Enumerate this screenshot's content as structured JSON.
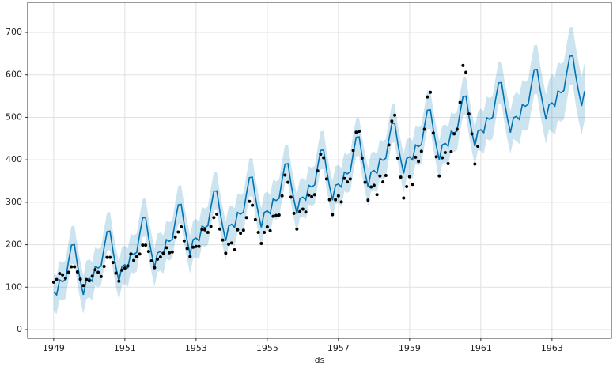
{
  "chart_data": {
    "type": "forecast",
    "xlabel": "ds",
    "xlim": [
      1948.27,
      1964.67
    ],
    "ylim": [
      -20.5,
      770.8
    ],
    "xticks": [
      1949,
      1951,
      1953,
      1955,
      1957,
      1959,
      1961,
      1963
    ],
    "yticks": [
      0,
      100,
      200,
      300,
      400,
      500,
      600,
      700
    ],
    "grid": true,
    "point_color": "#000000",
    "line_color": "#0072B2",
    "band_color": "#0072B2",
    "x": [
      1949,
      1949.083,
      1949.167,
      1949.25,
      1949.333,
      1949.417,
      1949.5,
      1949.583,
      1949.667,
      1949.75,
      1949.833,
      1949.917,
      1950,
      1950.083,
      1950.167,
      1950.25,
      1950.333,
      1950.417,
      1950.5,
      1950.583,
      1950.667,
      1950.75,
      1950.833,
      1950.917,
      1951,
      1951.083,
      1951.167,
      1951.25,
      1951.333,
      1951.417,
      1951.5,
      1951.583,
      1951.667,
      1951.75,
      1951.833,
      1951.917,
      1952,
      1952.083,
      1952.167,
      1952.25,
      1952.333,
      1952.417,
      1952.5,
      1952.583,
      1952.667,
      1952.75,
      1952.833,
      1952.917,
      1953,
      1953.083,
      1953.167,
      1953.25,
      1953.333,
      1953.417,
      1953.5,
      1953.583,
      1953.667,
      1953.75,
      1953.833,
      1953.917,
      1954,
      1954.083,
      1954.167,
      1954.25,
      1954.333,
      1954.417,
      1954.5,
      1954.583,
      1954.667,
      1954.75,
      1954.833,
      1954.917,
      1955,
      1955.083,
      1955.167,
      1955.25,
      1955.333,
      1955.417,
      1955.5,
      1955.583,
      1955.667,
      1955.75,
      1955.833,
      1955.917,
      1956,
      1956.083,
      1956.167,
      1956.25,
      1956.333,
      1956.417,
      1956.5,
      1956.583,
      1956.667,
      1956.75,
      1956.833,
      1956.917,
      1957,
      1957.083,
      1957.167,
      1957.25,
      1957.333,
      1957.417,
      1957.5,
      1957.583,
      1957.667,
      1957.75,
      1957.833,
      1957.917,
      1958,
      1958.083,
      1958.167,
      1958.25,
      1958.333,
      1958.417,
      1958.5,
      1958.583,
      1958.667,
      1958.75,
      1958.833,
      1958.917,
      1959,
      1959.083,
      1959.167,
      1959.25,
      1959.333,
      1959.417,
      1959.5,
      1959.583,
      1959.667,
      1959.75,
      1959.833,
      1959.917,
      1960,
      1960.083,
      1960.167,
      1960.25,
      1960.333,
      1960.417,
      1960.5,
      1960.583,
      1960.667,
      1960.75,
      1960.833,
      1960.917,
      1961,
      1961.083,
      1961.167,
      1961.25,
      1961.333,
      1961.417,
      1961.5,
      1961.583,
      1961.667,
      1961.75,
      1961.833,
      1961.917,
      1962,
      1962.083,
      1962.167,
      1962.25,
      1962.333,
      1962.417,
      1962.5,
      1962.583,
      1962.667,
      1962.75,
      1962.833,
      1962.917,
      1963,
      1963.083,
      1963.167,
      1963.25,
      1963.333,
      1963.417,
      1963.5,
      1963.583,
      1963.667,
      1963.75,
      1963.833,
      1963.917
    ],
    "observed": [
      112,
      118,
      132,
      129,
      121,
      135,
      148,
      148,
      136,
      119,
      104,
      118,
      115,
      126,
      141,
      135,
      125,
      149,
      170,
      170,
      158,
      133,
      114,
      140,
      145,
      150,
      178,
      163,
      172,
      178,
      199,
      199,
      184,
      162,
      146,
      166,
      171,
      180,
      193,
      181,
      183,
      218,
      230,
      242,
      209,
      191,
      172,
      194,
      196,
      196,
      236,
      235,
      229,
      243,
      264,
      272,
      237,
      211,
      180,
      201,
      204,
      188,
      235,
      227,
      234,
      264,
      302,
      293,
      259,
      229,
      203,
      229,
      242,
      233,
      267,
      269,
      270,
      315,
      364,
      347,
      312,
      274,
      237,
      278,
      284,
      277,
      317,
      313,
      318,
      374,
      413,
      405,
      355,
      306,
      271,
      306,
      315,
      301,
      356,
      348,
      355,
      422,
      465,
      467,
      404,
      347,
      305,
      336,
      340,
      318,
      362,
      348,
      363,
      435,
      491,
      505,
      404,
      359,
      310,
      337,
      360,
      342,
      406,
      396,
      420,
      472,
      548,
      559,
      463,
      407,
      362,
      405,
      417,
      391,
      419,
      461,
      472,
      535,
      622,
      606,
      508,
      461,
      390,
      432,
      null,
      null,
      null,
      null,
      null,
      null,
      null,
      null,
      null,
      null,
      null,
      null,
      null,
      null,
      null,
      null,
      null,
      null,
      null,
      null,
      null,
      null,
      null,
      null,
      null,
      null,
      null,
      null,
      null,
      null,
      null,
      null,
      null,
      null,
      null,
      null
    ],
    "yhat": [
      89,
      82,
      117,
      113,
      118,
      161,
      199,
      200,
      153,
      115,
      82,
      117,
      121,
      114,
      149,
      145,
      150,
      193,
      231,
      232,
      185,
      147,
      114,
      149,
      153,
      146,
      181,
      177,
      182,
      225,
      263,
      264,
      217,
      179,
      146,
      181,
      184,
      177,
      212,
      208,
      213,
      256,
      294,
      295,
      248,
      210,
      177,
      212,
      216,
      209,
      244,
      240,
      245,
      288,
      326,
      327,
      280,
      242,
      209,
      244,
      248,
      241,
      276,
      272,
      277,
      320,
      358,
      359,
      312,
      274,
      241,
      276,
      280,
      273,
      308,
      304,
      309,
      352,
      390,
      391,
      344,
      306,
      273,
      308,
      312,
      305,
      340,
      336,
      341,
      384,
      422,
      423,
      376,
      338,
      305,
      340,
      343,
      336,
      371,
      367,
      372,
      415,
      453,
      454,
      407,
      369,
      336,
      371,
      375,
      368,
      403,
      399,
      404,
      447,
      485,
      486,
      439,
      401,
      368,
      403,
      407,
      400,
      435,
      431,
      436,
      479,
      517,
      518,
      471,
      433,
      400,
      435,
      439,
      432,
      467,
      463,
      468,
      511,
      549,
      550,
      503,
      465,
      432,
      467,
      471,
      464,
      499,
      495,
      500,
      543,
      581,
      582,
      535,
      497,
      464,
      499,
      502,
      495,
      530,
      526,
      531,
      574,
      612,
      613,
      566,
      528,
      495,
      530,
      534,
      527,
      562,
      558,
      563,
      606,
      644,
      645,
      598,
      560,
      527,
      562
    ],
    "yhat_lower": [
      44,
      37,
      72,
      68,
      73,
      116,
      154,
      155,
      108,
      70,
      37,
      72,
      76,
      69,
      104,
      100,
      105,
      148,
      186,
      187,
      140,
      102,
      69,
      104,
      108,
      101,
      136,
      132,
      137,
      180,
      218,
      219,
      172,
      134,
      101,
      136,
      139,
      132,
      167,
      163,
      168,
      211,
      249,
      250,
      203,
      165,
      132,
      167,
      171,
      164,
      199,
      195,
      200,
      243,
      281,
      282,
      235,
      197,
      164,
      199,
      203,
      196,
      231,
      227,
      232,
      275,
      313,
      314,
      267,
      229,
      196,
      231,
      235,
      228,
      263,
      259,
      264,
      307,
      345,
      346,
      299,
      261,
      228,
      263,
      267,
      260,
      295,
      291,
      296,
      339,
      377,
      378,
      331,
      293,
      260,
      295,
      298,
      291,
      326,
      322,
      327,
      370,
      408,
      409,
      362,
      324,
      291,
      326,
      330,
      323,
      358,
      354,
      359,
      402,
      440,
      441,
      394,
      356,
      323,
      358,
      362,
      355,
      390,
      386,
      391,
      434,
      472,
      473,
      426,
      388,
      355,
      390,
      394,
      387,
      422,
      418,
      423,
      466,
      504,
      505,
      458,
      420,
      387,
      422,
      421,
      414,
      449,
      445,
      450,
      493,
      531,
      532,
      485,
      447,
      414,
      449,
      444,
      437,
      472,
      468,
      473,
      516,
      554,
      555,
      508,
      470,
      437,
      472,
      466,
      459,
      494,
      490,
      495,
      538,
      576,
      577,
      530,
      492,
      459,
      494
    ],
    "yhat_upper": [
      134,
      127,
      162,
      158,
      163,
      206,
      244,
      245,
      198,
      160,
      127,
      162,
      166,
      159,
      194,
      190,
      195,
      238,
      276,
      277,
      230,
      192,
      159,
      194,
      198,
      191,
      226,
      222,
      227,
      270,
      308,
      309,
      262,
      224,
      191,
      226,
      229,
      222,
      257,
      253,
      258,
      301,
      339,
      340,
      293,
      255,
      222,
      257,
      261,
      254,
      289,
      285,
      290,
      333,
      371,
      372,
      325,
      287,
      254,
      289,
      293,
      286,
      321,
      317,
      322,
      365,
      403,
      404,
      357,
      319,
      286,
      321,
      325,
      318,
      353,
      349,
      354,
      397,
      435,
      436,
      389,
      351,
      318,
      353,
      357,
      350,
      385,
      381,
      386,
      429,
      467,
      468,
      421,
      383,
      350,
      385,
      388,
      381,
      416,
      412,
      417,
      460,
      498,
      499,
      452,
      414,
      381,
      416,
      420,
      413,
      448,
      444,
      449,
      492,
      530,
      531,
      484,
      446,
      413,
      448,
      452,
      445,
      480,
      476,
      481,
      524,
      562,
      563,
      516,
      478,
      445,
      480,
      484,
      477,
      512,
      508,
      513,
      556,
      594,
      595,
      548,
      510,
      477,
      512,
      521,
      514,
      549,
      545,
      550,
      593,
      631,
      632,
      585,
      547,
      514,
      549,
      560,
      553,
      588,
      584,
      589,
      632,
      670,
      671,
      624,
      586,
      553,
      588,
      602,
      595,
      630,
      626,
      631,
      674,
      712,
      713,
      666,
      628,
      595,
      630
    ]
  }
}
